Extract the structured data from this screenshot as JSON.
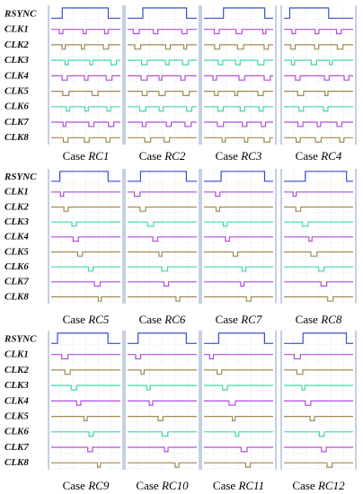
{
  "signals": [
    "RSYNC",
    "CLK1",
    "CLK2",
    "CLK3",
    "CLK4",
    "CLK5",
    "CLK6",
    "CLK7",
    "CLK8"
  ],
  "signal_colors": {
    "RSYNC": "#3a4fc8",
    "CLK1": "#b04fd8",
    "CLK2": "#a08a55",
    "CLK3": "#3fd8a8",
    "CLK4": "#b04fd8",
    "CLK5": "#a08a55",
    "CLK6": "#3fd8a8",
    "CLK7": "#b04fd8",
    "CLK8": "#a08a55"
  },
  "caption_prefix": "Case",
  "rows": [
    {
      "cases": [
        "RC1",
        "RC2",
        "RC3",
        "RC4"
      ]
    },
    {
      "cases": [
        "RC5",
        "RC6",
        "RC7",
        "RC8"
      ]
    },
    {
      "cases": [
        "RC9",
        "RC10",
        "RC11",
        "RC12"
      ]
    }
  ]
}
